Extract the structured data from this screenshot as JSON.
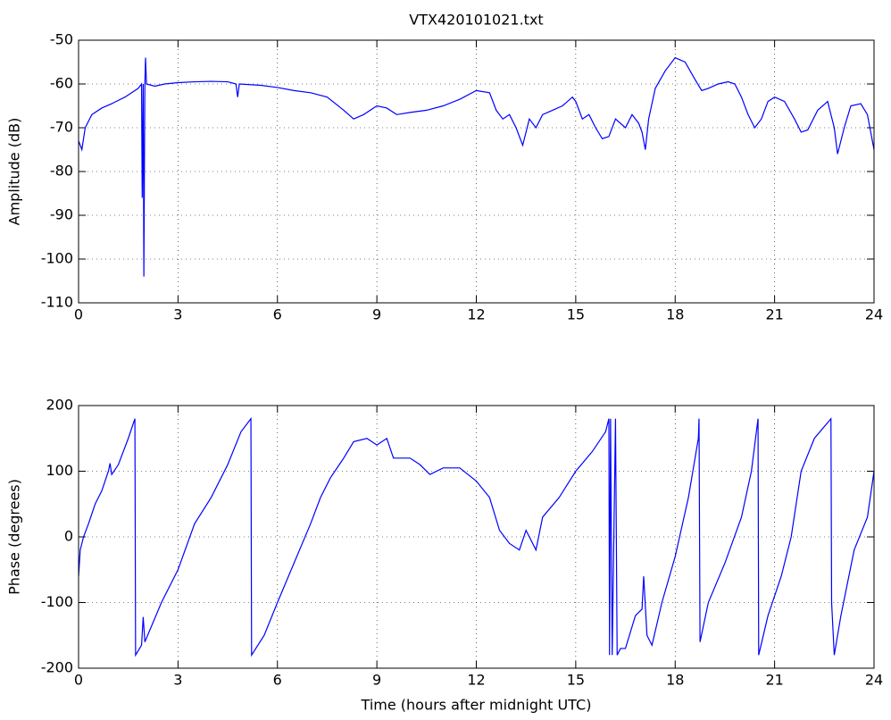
{
  "chart_data": [
    {
      "type": "line",
      "title": "VTX420101021.txt",
      "ylabel": "Amplitude (dB)",
      "color": "#0000ff",
      "grid": true,
      "xlim": [
        0,
        24
      ],
      "xticks": [
        0,
        3,
        6,
        9,
        12,
        15,
        18,
        21,
        24
      ],
      "ylim": [
        -110,
        -50
      ],
      "yticks": [
        -110,
        -100,
        -90,
        -80,
        -70,
        -60,
        -50
      ],
      "x": [
        0,
        0.1,
        0.2,
        0.4,
        0.7,
        1.0,
        1.4,
        1.8,
        1.9,
        1.92,
        1.95,
        1.97,
        2.0,
        2.02,
        2.05,
        2.3,
        2.6,
        3,
        3.5,
        4,
        4.5,
        4.75,
        4.8,
        4.85,
        5.5,
        6,
        6.5,
        7,
        7.5,
        8,
        8.3,
        8.6,
        9,
        9.3,
        9.6,
        10,
        10.5,
        11,
        11.5,
        12,
        12.4,
        12.6,
        12.8,
        13,
        13.2,
        13.4,
        13.6,
        13.8,
        14,
        14.3,
        14.6,
        14.9,
        15,
        15.2,
        15.4,
        15.6,
        15.8,
        16,
        16.2,
        16.5,
        16.7,
        16.9,
        17,
        17.1,
        17.2,
        17.4,
        17.7,
        18,
        18.3,
        18.6,
        18.8,
        19,
        19.3,
        19.6,
        19.8,
        20,
        20.2,
        20.4,
        20.6,
        20.8,
        21,
        21.3,
        21.6,
        21.8,
        22,
        22.3,
        22.6,
        22.8,
        22.9,
        23.1,
        23.3,
        23.6,
        23.8,
        24
      ],
      "values": [
        -73,
        -75,
        -70,
        -67,
        -65.5,
        -64.5,
        -63,
        -61,
        -60,
        -86,
        -60,
        -104,
        -60,
        -54,
        -60,
        -60.5,
        -60,
        -59.7,
        -59.5,
        -59.4,
        -59.5,
        -60,
        -63,
        -60,
        -60.3,
        -60.8,
        -61.5,
        -62,
        -63,
        -66,
        -68,
        -67,
        -65,
        -65.5,
        -67,
        -66.5,
        -66,
        -65,
        -63.5,
        -61.5,
        -62,
        -66,
        -68,
        -67,
        -70,
        -74,
        -68,
        -70,
        -67,
        -66,
        -65,
        -63,
        -64,
        -68,
        -67,
        -70,
        -72.5,
        -72,
        -68,
        -70,
        -67,
        -69,
        -71,
        -75,
        -68,
        -61,
        -57,
        -54,
        -55,
        -59,
        -61.5,
        -61,
        -60,
        -59.5,
        -60,
        -63,
        -67,
        -70,
        -68,
        -64,
        -63,
        -64,
        -68,
        -71,
        -70.5,
        -66,
        -64,
        -70,
        -76,
        -70,
        -65,
        -64.5,
        -67,
        -75
      ]
    },
    {
      "type": "line",
      "xlabel": "Time (hours after midnight UTC)",
      "ylabel": "Phase (degrees)",
      "color": "#0000ff",
      "grid": true,
      "xlim": [
        0,
        24
      ],
      "xticks": [
        0,
        3,
        6,
        9,
        12,
        15,
        18,
        21,
        24
      ],
      "ylim": [
        -200,
        200
      ],
      "yticks": [
        -200,
        -100,
        0,
        100,
        200
      ],
      "x": [
        0,
        0.05,
        0.15,
        0.3,
        0.5,
        0.7,
        0.9,
        0.95,
        1.0,
        1.2,
        1.5,
        1.7,
        1.72,
        1.9,
        1.95,
        2.0,
        2.5,
        3,
        3.5,
        4,
        4.5,
        4.9,
        5.2,
        5.22,
        5.6,
        6,
        6.5,
        7,
        7.3,
        7.6,
        8,
        8.3,
        8.7,
        9,
        9.3,
        9.5,
        10,
        10.3,
        10.6,
        11,
        11.5,
        12,
        12.4,
        12.7,
        13,
        13.3,
        13.5,
        13.8,
        14,
        14.5,
        15,
        15.5,
        15.9,
        16.0,
        16.02,
        16.05,
        16.1,
        16.2,
        16.25,
        16.35,
        16.5,
        16.8,
        17,
        17.05,
        17.15,
        17.3,
        17.6,
        18,
        18.4,
        18.7,
        18.72,
        18.75,
        19,
        19.5,
        20,
        20.3,
        20.5,
        20.52,
        20.8,
        21.2,
        21.5,
        21.8,
        22.2,
        22.7,
        22.72,
        22.8,
        23,
        23.4,
        23.8,
        24
      ],
      "values": [
        -60,
        -20,
        0,
        20,
        50,
        70,
        100,
        112,
        95,
        110,
        150,
        180,
        -180,
        -165,
        -122,
        -160,
        -100,
        -50,
        20,
        60,
        110,
        160,
        180,
        -180,
        -150,
        -100,
        -40,
        20,
        60,
        90,
        120,
        145,
        150,
        140,
        150,
        120,
        120,
        110,
        95,
        105,
        105,
        85,
        60,
        10,
        -10,
        -20,
        10,
        -20,
        30,
        60,
        100,
        130,
        160,
        180,
        -180,
        180,
        -180,
        180,
        -180,
        -170,
        -170,
        -120,
        -110,
        -60,
        -150,
        -165,
        -100,
        -30,
        60,
        150,
        180,
        -160,
        -100,
        -40,
        30,
        100,
        180,
        -180,
        -120,
        -60,
        0,
        100,
        150,
        180,
        -100,
        -180,
        -120,
        -20,
        30,
        100
      ]
    }
  ]
}
